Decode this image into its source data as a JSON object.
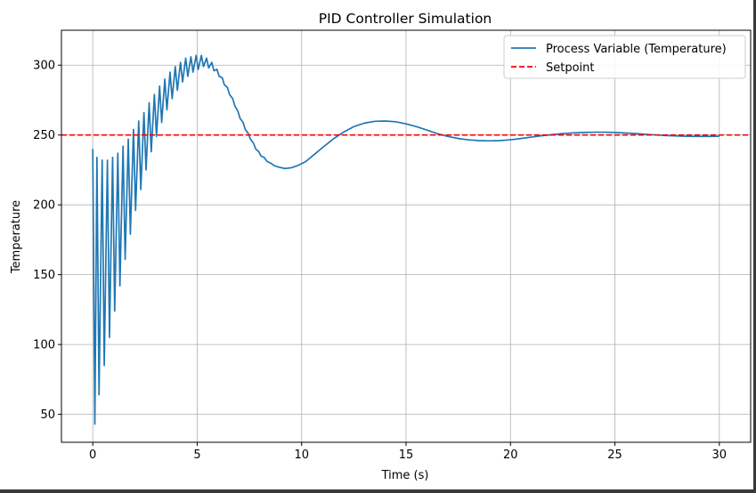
{
  "chart_data": {
    "type": "line",
    "title": "PID Controller Simulation",
    "xlabel": "Time (s)",
    "ylabel": "Temperature",
    "xlim": [
      -1.5,
      31.5
    ],
    "ylim": [
      30,
      325
    ],
    "xticks": [
      0,
      5,
      10,
      15,
      20,
      25,
      30
    ],
    "yticks": [
      50,
      100,
      150,
      200,
      250,
      300
    ],
    "grid": true,
    "legend_position": "top-right",
    "setpoint": 250,
    "series": [
      {
        "name": "Process Variable (Temperature)",
        "color": "#1f77b4",
        "style": "solid",
        "points": [
          [
            0.0,
            240
          ],
          [
            0.1,
            43
          ],
          [
            0.2,
            234
          ],
          [
            0.3,
            64
          ],
          [
            0.45,
            232
          ],
          [
            0.55,
            85
          ],
          [
            0.7,
            232
          ],
          [
            0.8,
            105
          ],
          [
            0.95,
            234
          ],
          [
            1.05,
            124
          ],
          [
            1.2,
            237
          ],
          [
            1.3,
            142
          ],
          [
            1.45,
            242
          ],
          [
            1.55,
            161
          ],
          [
            1.7,
            247
          ],
          [
            1.8,
            179
          ],
          [
            1.95,
            254
          ],
          [
            2.05,
            196
          ],
          [
            2.2,
            260
          ],
          [
            2.3,
            211
          ],
          [
            2.45,
            266
          ],
          [
            2.55,
            225
          ],
          [
            2.7,
            273
          ],
          [
            2.8,
            238
          ],
          [
            2.95,
            279
          ],
          [
            3.05,
            249
          ],
          [
            3.2,
            285
          ],
          [
            3.3,
            259
          ],
          [
            3.45,
            290
          ],
          [
            3.55,
            268
          ],
          [
            3.7,
            295
          ],
          [
            3.8,
            276
          ],
          [
            3.95,
            299
          ],
          [
            4.05,
            282
          ],
          [
            4.2,
            302
          ],
          [
            4.3,
            288
          ],
          [
            4.45,
            305
          ],
          [
            4.55,
            292
          ],
          [
            4.7,
            306
          ],
          [
            4.8,
            295
          ],
          [
            4.95,
            307
          ],
          [
            5.05,
            297
          ],
          [
            5.2,
            307
          ],
          [
            5.3,
            299
          ],
          [
            5.45,
            305
          ],
          [
            5.55,
            298
          ],
          [
            5.7,
            302
          ],
          [
            5.8,
            296
          ],
          [
            5.95,
            297
          ],
          [
            6.05,
            292
          ],
          [
            6.2,
            291
          ],
          [
            6.3,
            286
          ],
          [
            6.45,
            284
          ],
          [
            6.55,
            279
          ],
          [
            6.7,
            276
          ],
          [
            6.8,
            271
          ],
          [
            6.95,
            267
          ],
          [
            7.05,
            262
          ],
          [
            7.2,
            259
          ],
          [
            7.3,
            254
          ],
          [
            7.45,
            251
          ],
          [
            7.55,
            247
          ],
          [
            7.7,
            244
          ],
          [
            7.8,
            240
          ],
          [
            7.95,
            238
          ],
          [
            8.05,
            235
          ],
          [
            8.2,
            234
          ],
          [
            8.35,
            231
          ],
          [
            8.5,
            230
          ],
          [
            8.7,
            228
          ],
          [
            8.9,
            227
          ],
          [
            9.2,
            226
          ],
          [
            9.5,
            226.5
          ],
          [
            9.8,
            228
          ],
          [
            10.2,
            231
          ],
          [
            10.6,
            236
          ],
          [
            11.0,
            241
          ],
          [
            11.5,
            247
          ],
          [
            12.0,
            252
          ],
          [
            12.5,
            256
          ],
          [
            13.0,
            258.5
          ],
          [
            13.5,
            259.8
          ],
          [
            14.0,
            260
          ],
          [
            14.5,
            259.5
          ],
          [
            15.0,
            258
          ],
          [
            15.5,
            256
          ],
          [
            16.0,
            253.5
          ],
          [
            16.5,
            251
          ],
          [
            17.0,
            249
          ],
          [
            17.5,
            247.5
          ],
          [
            18.0,
            246.5
          ],
          [
            18.5,
            246
          ],
          [
            19.0,
            245.8
          ],
          [
            19.5,
            246
          ],
          [
            20.0,
            246.6
          ],
          [
            20.5,
            247.5
          ],
          [
            21.0,
            248.5
          ],
          [
            21.5,
            249.5
          ],
          [
            22.0,
            250.3
          ],
          [
            22.5,
            251
          ],
          [
            23.0,
            251.5
          ],
          [
            23.5,
            251.8
          ],
          [
            24.0,
            252
          ],
          [
            24.5,
            252
          ],
          [
            25.0,
            251.8
          ],
          [
            25.5,
            251.4
          ],
          [
            26.0,
            251
          ],
          [
            26.5,
            250.5
          ],
          [
            27.0,
            250
          ],
          [
            27.5,
            249.6
          ],
          [
            28.0,
            249.3
          ],
          [
            28.5,
            249.1
          ],
          [
            29.0,
            249
          ],
          [
            29.5,
            249
          ],
          [
            30.0,
            249.1
          ]
        ]
      },
      {
        "name": "Setpoint",
        "color": "#ff0000",
        "style": "dashed",
        "constant": 250
      }
    ]
  }
}
